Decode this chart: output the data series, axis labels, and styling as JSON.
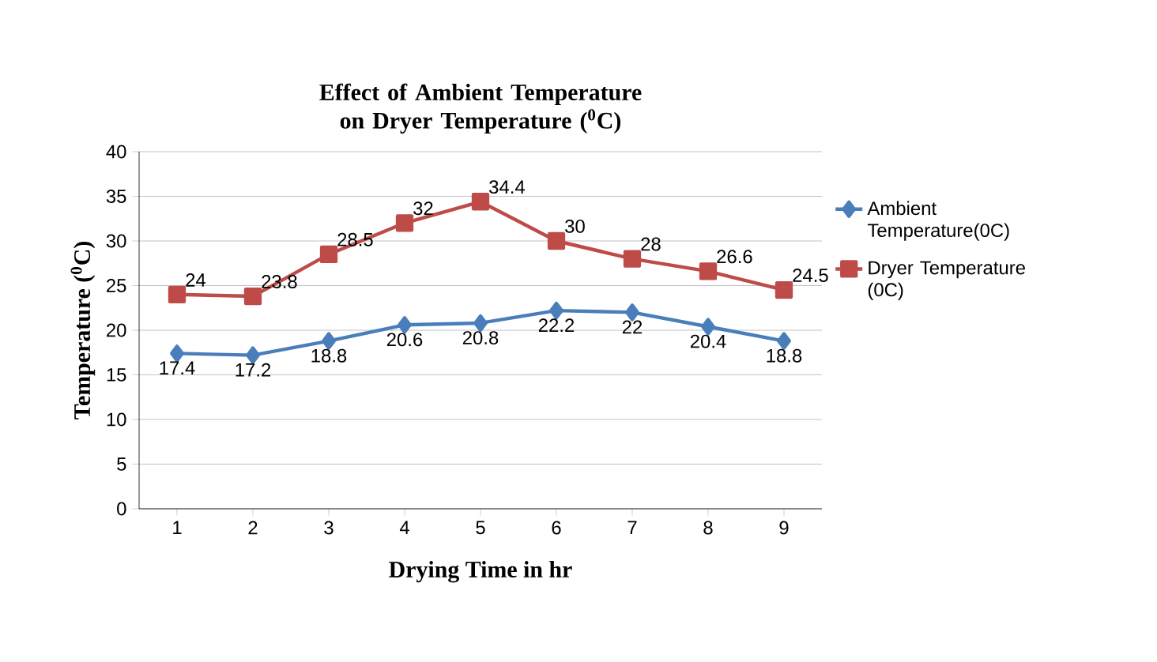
{
  "chart_data": {
    "type": "line",
    "title": "Effect of Ambient Temperature on Dryer Temperature ($^{0}$C)",
    "xlabel": "Drying Time in hr",
    "ylabel": "Temperature ($^{0}$C)",
    "categories": [
      "1",
      "2",
      "3",
      "4",
      "5",
      "6",
      "7",
      "8",
      "9"
    ],
    "series": [
      {
        "name": "Ambient Temperature(0C)",
        "color": "#4a7ebb",
        "marker": "diamond",
        "values": [
          17.4,
          17.2,
          18.8,
          20.6,
          20.8,
          22.2,
          22,
          20.4,
          18.8
        ]
      },
      {
        "name": "Dryer Temperature (0C)",
        "color": "#be4b48",
        "marker": "square",
        "values": [
          24,
          23.8,
          28.5,
          32,
          34.4,
          30,
          28,
          26.6,
          24.5
        ]
      }
    ],
    "ylim": [
      0,
      40
    ],
    "yticks": [
      0,
      5,
      10,
      15,
      20,
      25,
      30,
      35,
      40
    ],
    "grid": "y",
    "legend": "right",
    "data_labels": true
  }
}
